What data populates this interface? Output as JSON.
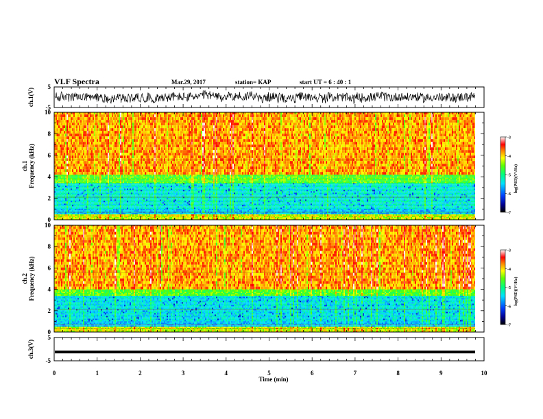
{
  "header": {
    "title": "VLF Spectra",
    "date": "Mar.29, 2017",
    "station": "station= KAP",
    "start": "start UT =  6 : 40 : 1"
  },
  "chart_data": [
    {
      "type": "line",
      "name": "ch1-waveform",
      "ylabel": "ch.1(V)",
      "ylim": [
        -5,
        5
      ],
      "yticks": [
        "5",
        "-5"
      ],
      "xlim": [
        0,
        10
      ],
      "series_description": "noisy waveform, amplitude roughly -2.5 to 2.5 V, ends near 9.8 min"
    },
    {
      "type": "heatmap",
      "name": "ch1-spectrogram",
      "ylabel": "ch.1 Frequency (kHz)",
      "ylim": [
        0,
        10
      ],
      "yticks": [
        "0",
        "2",
        "4",
        "6",
        "8",
        "10"
      ],
      "xlim": [
        0,
        10
      ],
      "colorbar": {
        "label": "log(PSD)(V²/Hz)",
        "range": [
          -7,
          -3
        ],
        "ticks": [
          "-3",
          "-4",
          "-5",
          "-6",
          "-7"
        ]
      },
      "bands": [
        {
          "from_khz": 0.0,
          "to_khz": 0.5,
          "level": -4.2
        },
        {
          "from_khz": 0.5,
          "to_khz": 1.0,
          "level": -5.6
        },
        {
          "from_khz": 1.0,
          "to_khz": 3.4,
          "level": -5.3
        },
        {
          "from_khz": 3.4,
          "to_khz": 4.2,
          "level": -4.6
        },
        {
          "from_khz": 4.2,
          "to_khz": 10.0,
          "level": -3.8
        }
      ]
    },
    {
      "type": "heatmap",
      "name": "ch2-spectrogram",
      "ylabel": "ch.2 Frequency (kHz)",
      "ylim": [
        0,
        10
      ],
      "yticks": [
        "0",
        "2",
        "4",
        "6",
        "8",
        "10"
      ],
      "xlim": [
        0,
        10
      ],
      "colorbar": {
        "label": "log(PSD)(V²/Hz)",
        "range": [
          -7,
          -3
        ],
        "ticks": [
          "-3",
          "-4",
          "-5",
          "-6",
          "-7"
        ]
      },
      "bands": [
        {
          "from_khz": 0.0,
          "to_khz": 0.5,
          "level": -4.2
        },
        {
          "from_khz": 0.5,
          "to_khz": 1.0,
          "level": -5.6
        },
        {
          "from_khz": 1.0,
          "to_khz": 3.4,
          "level": -5.4
        },
        {
          "from_khz": 3.4,
          "to_khz": 4.0,
          "level": -4.6
        },
        {
          "from_khz": 4.0,
          "to_khz": 10.0,
          "level": -3.8
        }
      ]
    },
    {
      "type": "line",
      "name": "ch3-waveform",
      "ylabel": "ch.3(V)",
      "ylim": [
        -5,
        5
      ],
      "yticks": [
        "5",
        "-5"
      ],
      "xlim": [
        0,
        10
      ],
      "series_description": "nearly constant thick line at about -1.2 V"
    }
  ],
  "xaxis": {
    "label": "Time (min)",
    "range": [
      0,
      10
    ],
    "ticks": [
      "0",
      "1",
      "2",
      "3",
      "4",
      "5",
      "6",
      "7",
      "8",
      "9",
      "10"
    ],
    "data_end_min": 9.8
  }
}
